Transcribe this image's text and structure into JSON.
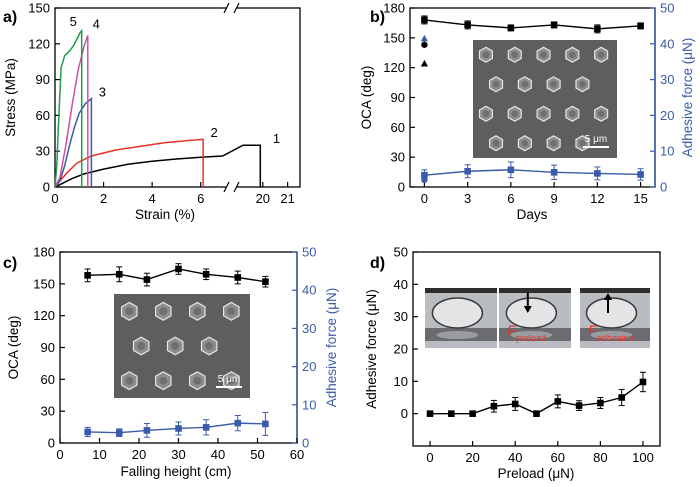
{
  "colors": {
    "black": "#000000",
    "red": "#e8312b",
    "green": "#1e9b4c",
    "magenta": "#d04fa0",
    "blue": "#3a5ba9",
    "axis_blue": "#3b5ca8",
    "sem_bg": "#5e5e5e",
    "photo_bg": "#b9bcc0"
  },
  "chart_data": [
    {
      "panel": "a)",
      "type": "line",
      "xlabel": "Strain (%)",
      "ylabel": "Stress (MPa)",
      "xlim": [
        0,
        21.5
      ],
      "x_break": [
        7,
        19
      ],
      "ylim": [
        0,
        150
      ],
      "xticks": [
        {
          "v": 0,
          "label": "0"
        },
        {
          "v": 2,
          "label": "2"
        },
        {
          "v": 4,
          "label": "4"
        },
        {
          "v": 6,
          "label": "6"
        },
        {
          "v": 20,
          "label": "20"
        },
        {
          "v": 21,
          "label": "21"
        }
      ],
      "yticks": [
        0,
        30,
        60,
        90,
        120,
        150
      ],
      "series": [
        {
          "name": "1",
          "color": "#000000",
          "points": [
            [
              0,
              0
            ],
            [
              0.3,
              3
            ],
            [
              0.7,
              7
            ],
            [
              1.2,
              11
            ],
            [
              2,
              15
            ],
            [
              3,
              19
            ],
            [
              4,
              21.5
            ],
            [
              5,
              23.5
            ],
            [
              6,
              25
            ],
            [
              6.9,
              26
            ],
            [
              19.2,
              35
            ],
            [
              19.9,
              35
            ],
            [
              19.9,
              0
            ]
          ]
        },
        {
          "name": "2",
          "color": "#e8312b",
          "points": [
            [
              0,
              0
            ],
            [
              0.2,
              5
            ],
            [
              0.5,
              12
            ],
            [
              0.9,
              20
            ],
            [
              1.5,
              26
            ],
            [
              2.5,
              31
            ],
            [
              3.5,
              34
            ],
            [
              4.5,
              37
            ],
            [
              5.5,
              39
            ],
            [
              6.1,
              40
            ],
            [
              6.1,
              0
            ]
          ]
        },
        {
          "name": "3",
          "color": "#3a5ba9",
          "points": [
            [
              0,
              0
            ],
            [
              0.2,
              5
            ],
            [
              0.4,
              18
            ],
            [
              0.6,
              35
            ],
            [
              0.8,
              50
            ],
            [
              1,
              62
            ],
            [
              1.25,
              70
            ],
            [
              1.5,
              74
            ],
            [
              1.5,
              0
            ]
          ]
        },
        {
          "name": "4",
          "color": "#d04fa0",
          "points": [
            [
              0,
              0
            ],
            [
              0.2,
              8
            ],
            [
              0.45,
              35
            ],
            [
              0.7,
              68
            ],
            [
              0.95,
              98
            ],
            [
              1.2,
              118
            ],
            [
              1.35,
              127
            ],
            [
              1.35,
              0
            ]
          ]
        },
        {
          "name": "5",
          "color": "#1e9b4c",
          "points": [
            [
              0,
              0
            ],
            [
              0.08,
              20
            ],
            [
              0.15,
              55
            ],
            [
              0.25,
              100
            ],
            [
              0.4,
              110
            ],
            [
              0.55,
              113
            ],
            [
              0.75,
              118
            ],
            [
              0.9,
              124
            ],
            [
              1.05,
              130
            ],
            [
              1.1,
              131
            ],
            [
              1.1,
              0
            ]
          ]
        }
      ],
      "curve_labels": [
        {
          "text": "5",
          "x": 0.75,
          "y": 135
        },
        {
          "text": "4",
          "x": 1.7,
          "y": 133
        },
        {
          "text": "3",
          "x": 1.95,
          "y": 76
        },
        {
          "text": "2",
          "x": 6.55,
          "y": 42
        },
        {
          "text": "1",
          "x": 20.55,
          "y": 37
        }
      ]
    },
    {
      "panel": "b)",
      "type": "line",
      "xlabel": "Days",
      "ylabel": "OCA (deg)",
      "ylabel_right": "Adhesive force (μN)",
      "xlim": [
        -1,
        16
      ],
      "ylim": [
        0,
        180
      ],
      "ylim_right": [
        0,
        50
      ],
      "xticks": [
        0,
        3,
        6,
        9,
        12,
        15
      ],
      "yticks": [
        0,
        30,
        60,
        90,
        120,
        150,
        180
      ],
      "yticks_right": [
        0,
        10,
        20,
        30,
        40,
        50
      ],
      "series": [
        {
          "name": "OCA",
          "axis": "left",
          "color": "#000000",
          "x": [
            0,
            3,
            6,
            9,
            12,
            15
          ],
          "values": [
            168,
            163,
            160,
            163,
            159,
            162
          ],
          "errors": [
            4,
            4,
            3,
            3,
            4,
            3
          ]
        },
        {
          "name": "Adhesive force",
          "axis": "right",
          "color": "#3a5ba9",
          "x": [
            0,
            3,
            6,
            9,
            12,
            15
          ],
          "values": [
            3.3,
            4.4,
            4.8,
            4.1,
            3.8,
            3.5
          ],
          "errors": [
            1.5,
            1.8,
            2.2,
            2,
            1.8,
            1.6
          ]
        }
      ],
      "markers": [
        {
          "x": 0,
          "y": 143,
          "axis": "left",
          "shape": "circle",
          "color": "#000000"
        },
        {
          "x": 0,
          "y": 41.5,
          "axis": "right",
          "shape": "triangle",
          "color": "#3a5ba9"
        },
        {
          "x": 0,
          "y": 34.5,
          "axis": "right",
          "shape": "triangle",
          "color": "#000000"
        },
        {
          "x": 0,
          "y": 2,
          "axis": "right",
          "shape": "circle",
          "color": "#3a5ba9"
        }
      ],
      "inset_scale": "5 μm"
    },
    {
      "panel": "c)",
      "type": "line",
      "xlabel": "Falling height  (cm)",
      "ylabel": "OCA (deg)",
      "ylabel_right": "Adhesive force (μN)",
      "xlim": [
        0,
        60
      ],
      "ylim": [
        0,
        180
      ],
      "ylim_right": [
        0,
        50
      ],
      "xticks": [
        0,
        10,
        20,
        30,
        40,
        50,
        60
      ],
      "yticks": [
        0,
        30,
        60,
        90,
        120,
        150,
        180
      ],
      "yticks_right": [
        0,
        10,
        20,
        30,
        40,
        50
      ],
      "series": [
        {
          "name": "OCA",
          "axis": "left",
          "color": "#000000",
          "x": [
            7,
            15,
            22,
            30,
            37,
            45,
            52
          ],
          "values": [
            158,
            159,
            154,
            164,
            159,
            156,
            152
          ],
          "errors": [
            6,
            7,
            6,
            5,
            5,
            6,
            5
          ]
        },
        {
          "name": "Adhesive force",
          "axis": "right",
          "color": "#3a5ba9",
          "x": [
            7,
            15,
            22,
            30,
            37,
            45,
            52
          ],
          "values": [
            2.9,
            2.7,
            3.3,
            3.8,
            4.1,
            5.2,
            5
          ],
          "errors": [
            1.2,
            1,
            1.8,
            1.7,
            2,
            2,
            3
          ]
        }
      ],
      "inset_scale": "5 μm"
    },
    {
      "panel": "d)",
      "type": "line",
      "xlabel": "Preload  (μN)",
      "ylabel": "Adhesive force (μN)",
      "xlim": [
        -8,
        108
      ],
      "ylim": [
        -10,
        50
      ],
      "xticks": [
        0,
        20,
        40,
        60,
        80,
        100
      ],
      "yticks": [
        0,
        10,
        20,
        30,
        40,
        50
      ],
      "series": [
        {
          "name": "Adhesive force",
          "color": "#000000",
          "x": [
            0,
            10,
            20,
            30,
            40,
            50,
            60,
            70,
            80,
            90,
            100
          ],
          "values": [
            0,
            0,
            0,
            2.3,
            3,
            0,
            3.8,
            2.5,
            3.3,
            5,
            9.8
          ],
          "errors": [
            0,
            0,
            0,
            1.8,
            2,
            0,
            2,
            1.5,
            1.7,
            2.5,
            3
          ]
        }
      ],
      "photo_labels": [
        "preload",
        "adhesion"
      ]
    }
  ]
}
